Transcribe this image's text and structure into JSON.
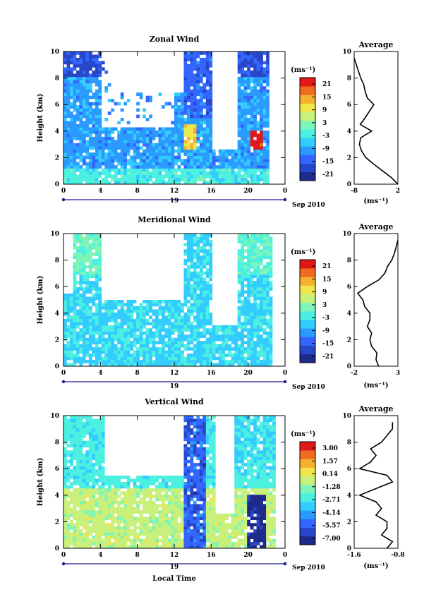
{
  "x_axis_label": "Local Time",
  "month_label": "Sep 2010",
  "day_label": "19",
  "units_label": "(ms⁻¹)",
  "colorscale": [
    "#1e2a8a",
    "#2846c8",
    "#3366ff",
    "#2a9aff",
    "#33ccff",
    "#4cf0e0",
    "#7ef5b8",
    "#c8f07a",
    "#f0e64a",
    "#f5b030",
    "#f06a20",
    "#e01818"
  ],
  "chart_data": [
    {
      "type": "heatmap",
      "title": "Zonal Wind",
      "xlabel": "Local Time",
      "ylabel": "Height (km)",
      "x_ticks": [
        "0",
        "4",
        "8",
        "12",
        "16",
        "20",
        "0"
      ],
      "y_ticks": [
        "0",
        "2",
        "4",
        "6",
        "8",
        "10"
      ],
      "xlim": [
        0,
        24
      ],
      "ylim": [
        0,
        10
      ],
      "colorbar_ticks": [
        "21",
        "15",
        "9",
        "3",
        "-3",
        "-9",
        "-15",
        "-21"
      ],
      "colorbar_range": [
        -24,
        24
      ],
      "profile": {
        "title": "Average",
        "xlabel": "(ms⁻¹)",
        "x_ticks": [
          "-8",
          "2"
        ],
        "xlim": [
          -8,
          2
        ],
        "heights": [
          0,
          0.5,
          1,
          1.5,
          2,
          2.5,
          3,
          3.5,
          4,
          4.5,
          5,
          5.5,
          6,
          6.5,
          7,
          7.5,
          8,
          8.5,
          9,
          9.5
        ],
        "values": [
          2,
          0.5,
          -1.5,
          -3.5,
          -5.3,
          -6.3,
          -6.8,
          -6.5,
          -4.0,
          -6.6,
          -5.5,
          -4.5,
          -3.5,
          -5.0,
          -5.5,
          -5.8,
          -6.5,
          -7.0,
          -7.5,
          -8.0
        ]
      }
    },
    {
      "type": "heatmap",
      "title": "Meridional Wind",
      "xlabel": "Local Time",
      "ylabel": "Height (km)",
      "x_ticks": [
        "0",
        "4",
        "8",
        "12",
        "16",
        "20",
        "0"
      ],
      "y_ticks": [
        "0",
        "2",
        "4",
        "6",
        "8",
        "10"
      ],
      "xlim": [
        0,
        24
      ],
      "ylim": [
        0,
        10
      ],
      "colorbar_ticks": [
        "21",
        "15",
        "9",
        "3",
        "-3",
        "-9",
        "-15",
        "-21"
      ],
      "colorbar_range": [
        -24,
        24
      ],
      "profile": {
        "title": "Average",
        "xlabel": "(ms⁻¹)",
        "x_ticks": [
          "-2",
          "3"
        ],
        "xlim": [
          -2,
          3
        ],
        "heights": [
          0,
          0.5,
          1,
          1.5,
          2,
          2.5,
          3,
          3.5,
          4,
          4.5,
          5,
          5.5,
          6,
          6.5,
          7,
          7.5,
          8,
          8.5,
          9,
          9.5
        ],
        "values": [
          0.8,
          0.5,
          0.6,
          0.0,
          -0.2,
          0.0,
          -0.5,
          -0.2,
          -0.2,
          -0.8,
          -1.0,
          -1.6,
          -0.5,
          0.8,
          1.5,
          1.8,
          2.3,
          2.6,
          2.8,
          3.0
        ]
      }
    },
    {
      "type": "heatmap",
      "title": "Vertical Wind",
      "xlabel": "Local Time",
      "ylabel": "Height (km)",
      "x_ticks": [
        "0",
        "4",
        "8",
        "12",
        "16",
        "20",
        "0"
      ],
      "y_ticks": [
        "0",
        "2",
        "4",
        "6",
        "8",
        "10"
      ],
      "xlim": [
        0,
        24
      ],
      "ylim": [
        0,
        10
      ],
      "colorbar_ticks": [
        "3.00",
        "1.57",
        "0.14",
        "-1.28",
        "-2.71",
        "-4.14",
        "-5.57",
        "-7.00"
      ],
      "colorbar_range": [
        -7.7,
        3.7
      ],
      "profile": {
        "title": "Average",
        "xlabel": "(ms⁻¹)",
        "x_ticks": [
          "-1.6",
          "-0.8"
        ],
        "xlim": [
          -1.6,
          -0.8
        ],
        "heights": [
          0,
          0.5,
          1,
          1.5,
          2,
          2.5,
          3,
          3.5,
          4,
          4.5,
          5,
          5.5,
          6,
          6.5,
          7,
          7.5,
          8,
          8.5,
          9,
          9.5
        ],
        "values": [
          -1.0,
          -0.9,
          -1.1,
          -1.0,
          -1.0,
          -1.2,
          -1.1,
          -1.2,
          -1.5,
          -1.2,
          -0.9,
          -1.0,
          -1.5,
          -1.3,
          -1.2,
          -1.3,
          -1.1,
          -1.0,
          -0.9,
          -0.9
        ]
      }
    }
  ]
}
